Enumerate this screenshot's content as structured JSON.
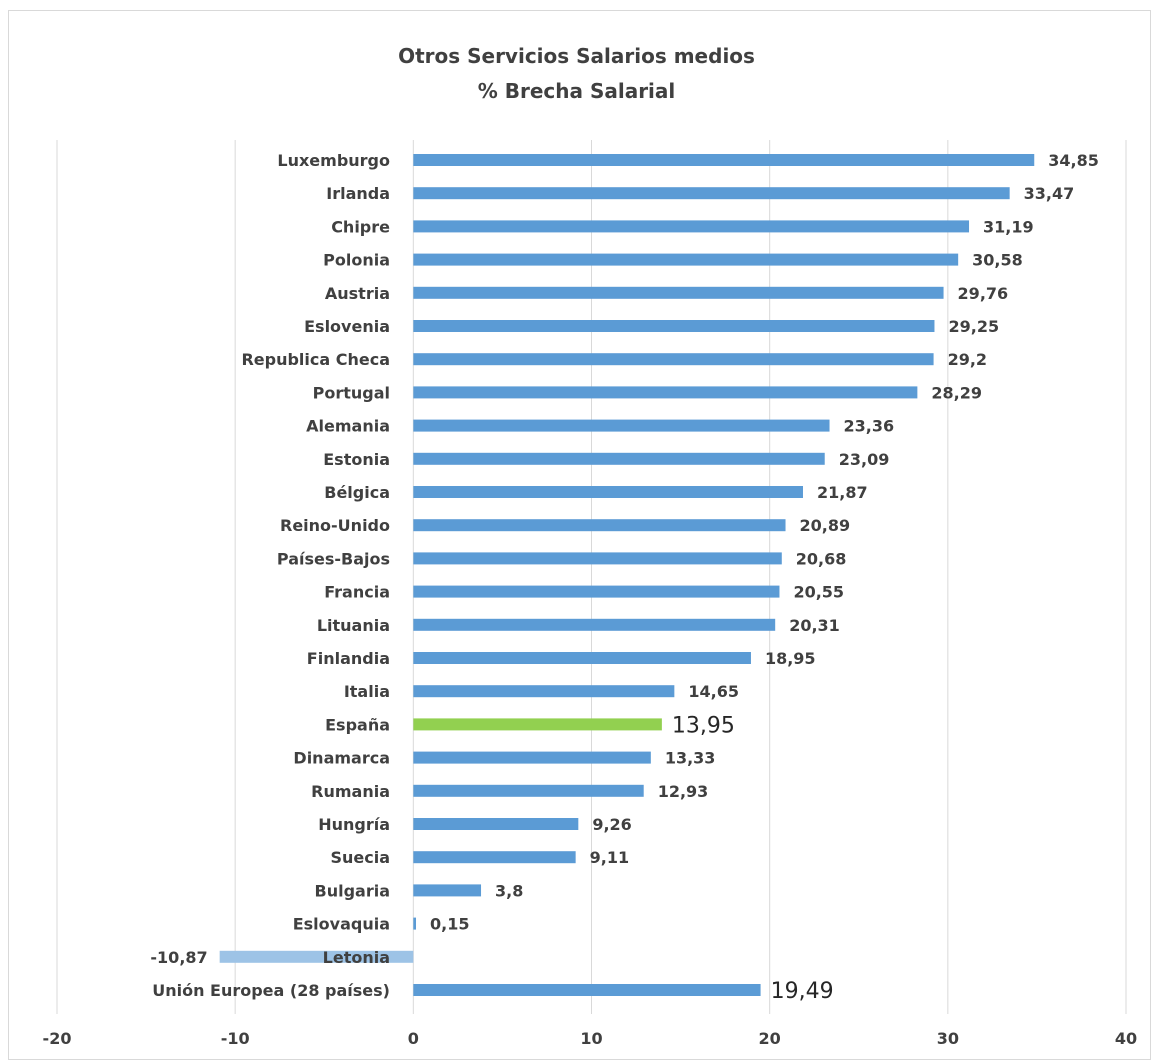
{
  "chart_data": {
    "type": "bar",
    "orientation": "horizontal",
    "title": "Otros Servicios Salarios medios",
    "subtitle": "% Brecha Salarial",
    "categories": [
      "Luxemburgo",
      "Irlanda",
      "Chipre",
      "Polonia",
      "Austria",
      "Eslovenia",
      "Republica Checa",
      "Portugal",
      "Alemania",
      "Estonia",
      "Bélgica",
      "Reino-Unido",
      "Países-Bajos",
      "Francia",
      "Lituania",
      "Finlandia",
      "Italia",
      "España",
      "Dinamarca",
      "Rumania",
      "Hungría",
      "Suecia",
      "Bulgaria",
      "Eslovaquia",
      "Letonia",
      "Unión Europea (28 países)"
    ],
    "values": [
      34.85,
      33.47,
      31.19,
      30.58,
      29.76,
      29.25,
      29.2,
      28.29,
      23.36,
      23.09,
      21.87,
      20.89,
      20.68,
      20.55,
      20.31,
      18.95,
      14.65,
      13.95,
      13.33,
      12.93,
      9.26,
      9.11,
      3.8,
      0.15,
      -10.87,
      19.49
    ],
    "value_labels": [
      "34,85",
      "33,47",
      "31,19",
      "30,58",
      "29,76",
      "29,25",
      "29,2",
      "28,29",
      "23,36",
      "23,09",
      "21,87",
      "20,89",
      "20,68",
      "20,55",
      "20,31",
      "18,95",
      "14,65",
      "13,95",
      "13,33",
      "12,93",
      "9,26",
      "9,11",
      "3,8",
      "0,15",
      "-10,87",
      "19,49"
    ],
    "xlim": [
      -20,
      40
    ],
    "xticks": [
      -20,
      -10,
      0,
      10,
      20,
      30,
      40
    ],
    "grid": "vertical",
    "legend": "none",
    "colors": {
      "default": "#5b9bd5",
      "highlight": "#92d050",
      "negative": "#9dc3e6",
      "gridline": "#d9d9d9",
      "text": "#404040"
    },
    "highlight_categories": [
      "España"
    ],
    "large_label_categories": [
      "España",
      "Unión Europea (28 países)"
    ]
  }
}
